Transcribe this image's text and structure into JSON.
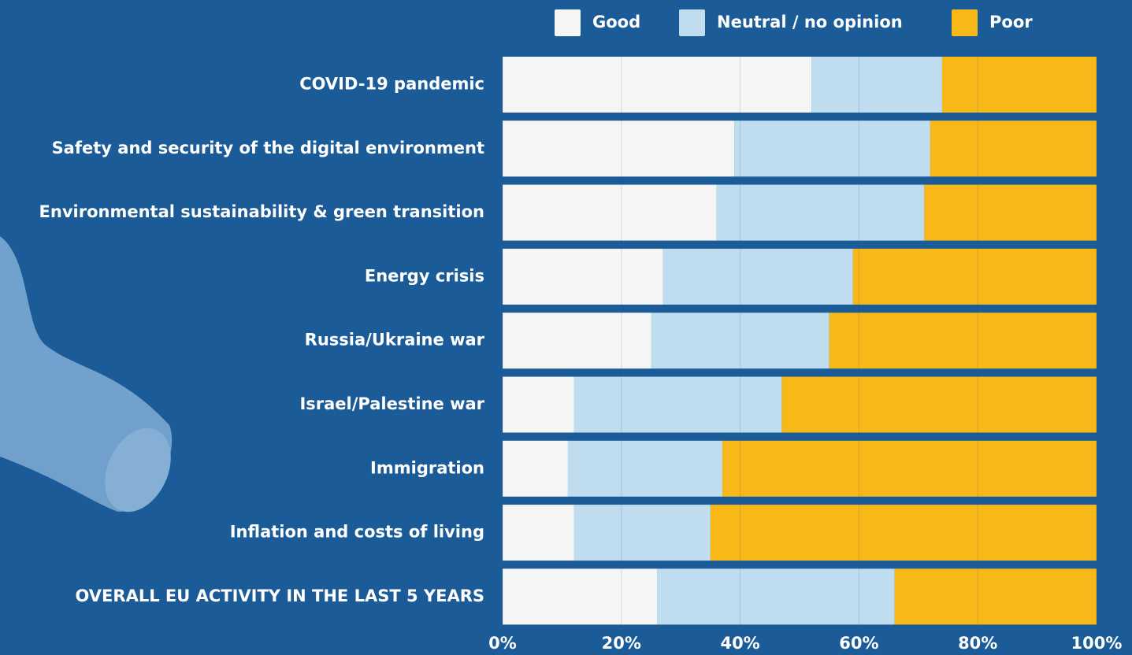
{
  "chart_data": {
    "type": "stacked_barh",
    "categories": [
      "COVID-19 pandemic",
      "Safety and security of the digital environment",
      "Environmental sustainability & green transition",
      "Energy crisis",
      "Russia/Ukraine war",
      "Israel/Palestine war",
      "Immigration",
      "Inflation and costs of living",
      "OVERALL EU ACTIVITY IN THE LAST 5 YEARS"
    ],
    "series": [
      {
        "name": "Good",
        "color": "#f5f5f5",
        "values": [
          52,
          39,
          36,
          27,
          25,
          12,
          11,
          12,
          26
        ]
      },
      {
        "name": "Neutral / no opinion",
        "color": "#c0dcef",
        "values": [
          22,
          33,
          35,
          32,
          30,
          35,
          26,
          23,
          40
        ]
      },
      {
        "name": "Poor",
        "color": "#f8b818",
        "values": [
          26,
          28,
          29,
          41,
          45,
          53,
          63,
          65,
          34
        ]
      }
    ],
    "xlim": [
      0,
      100
    ],
    "xticks": [
      {
        "value": 0,
        "label": "0%"
      },
      {
        "value": 20,
        "label": "20%"
      },
      {
        "value": 40,
        "label": "40%"
      },
      {
        "value": 60,
        "label": "60%"
      },
      {
        "value": 80,
        "label": "80%"
      },
      {
        "value": 100,
        "label": "100%"
      }
    ],
    "grid": true,
    "legend": "top"
  }
}
